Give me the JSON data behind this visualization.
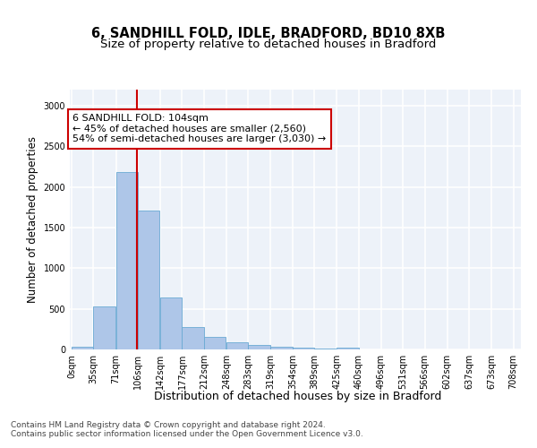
{
  "title1": "6, SANDHILL FOLD, IDLE, BRADFORD, BD10 8XB",
  "title2": "Size of property relative to detached houses in Bradford",
  "xlabel": "Distribution of detached houses by size in Bradford",
  "ylabel": "Number of detached properties",
  "bin_labels": [
    "0sqm",
    "35sqm",
    "71sqm",
    "106sqm",
    "142sqm",
    "177sqm",
    "212sqm",
    "248sqm",
    "283sqm",
    "319sqm",
    "354sqm",
    "389sqm",
    "425sqm",
    "460sqm",
    "496sqm",
    "531sqm",
    "566sqm",
    "602sqm",
    "637sqm",
    "673sqm",
    "708sqm"
  ],
  "bar_values": [
    30,
    525,
    2180,
    1710,
    635,
    280,
    150,
    90,
    55,
    35,
    25,
    10,
    20,
    5,
    0,
    0,
    0,
    0,
    0,
    0
  ],
  "bar_color": "#aec6e8",
  "bar_edge_color": "#6aaad4",
  "bin_starts": [
    0,
    35,
    71,
    106,
    142,
    177,
    212,
    248,
    283,
    319,
    354,
    389,
    425,
    460,
    496,
    531,
    566,
    602,
    637,
    673
  ],
  "bin_edges": [
    0,
    35,
    71,
    106,
    142,
    177,
    212,
    248,
    283,
    319,
    354,
    389,
    425,
    460,
    496,
    531,
    566,
    602,
    637,
    673,
    708
  ],
  "bin_width": 35,
  "property_line_x": 104,
  "annotation_text": "6 SANDHILL FOLD: 104sqm\n← 45% of detached houses are smaller (2,560)\n54% of semi-detached houses are larger (3,030) →",
  "annotation_box_color": "#ffffff",
  "annotation_box_edge": "#cc0000",
  "vline_color": "#cc0000",
  "ylim": [
    0,
    3200
  ],
  "yticks": [
    0,
    500,
    1000,
    1500,
    2000,
    2500,
    3000
  ],
  "footer_text": "Contains HM Land Registry data © Crown copyright and database right 2024.\nContains public sector information licensed under the Open Government Licence v3.0.",
  "background_color": "#edf2f9",
  "grid_color": "#ffffff",
  "title1_fontsize": 10.5,
  "title2_fontsize": 9.5,
  "xlabel_fontsize": 9,
  "ylabel_fontsize": 8.5,
  "tick_fontsize": 7,
  "footer_fontsize": 6.5,
  "annotation_fontsize": 8
}
